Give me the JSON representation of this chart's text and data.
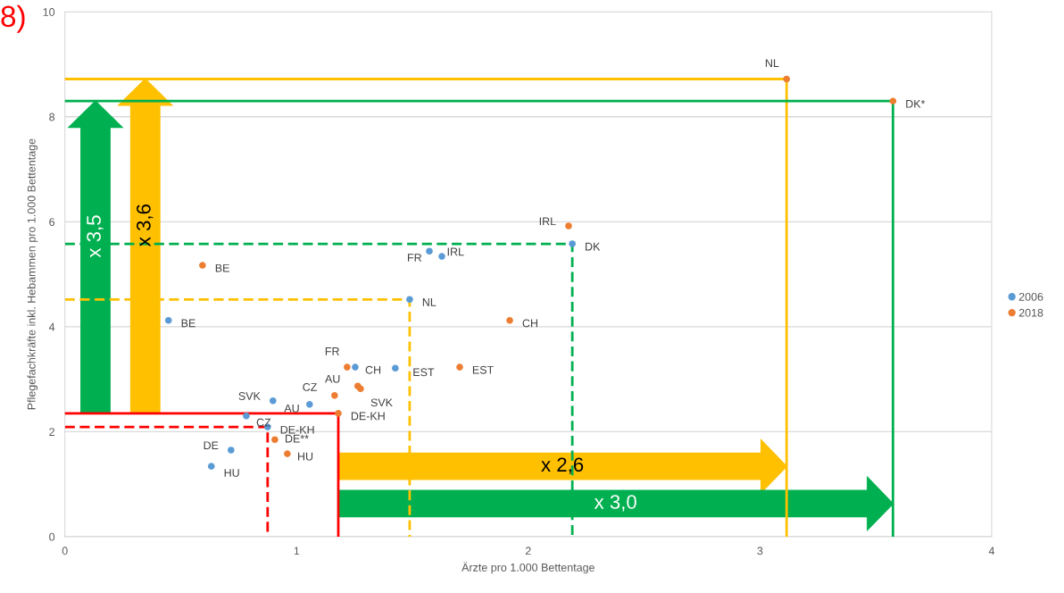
{
  "chart_data": {
    "type": "scatter",
    "xlabel": "Ärzte pro 1.000 Bettentage",
    "ylabel": "Pflegefachkräfte inkl. Hebammen pro 1.000 Bettentage",
    "annotations": [
      "8)",
      "x 3,5",
      "x 3,6",
      "x 2,6",
      "x 3,0"
    ],
    "xlim": [
      0,
      4
    ],
    "xticks": [
      0,
      1,
      2,
      3,
      4
    ],
    "ylim": [
      0,
      10
    ],
    "yticks": [
      0,
      2,
      4,
      6,
      8,
      10
    ],
    "grid": "y",
    "legend": "right",
    "marker": "circle",
    "series": [
      {
        "name": "2006",
        "color": "#5b9bd5",
        "x": [
          0.447,
          1.573,
          1.627,
          2.19,
          1.488,
          1.253,
          1.426,
          1.056,
          0.898,
          0.783,
          0.875,
          0.717,
          0.632
        ],
        "values": [
          4.12,
          5.44,
          5.34,
          5.58,
          4.52,
          3.23,
          3.21,
          2.52,
          2.59,
          2.3,
          2.09,
          1.65,
          1.34
        ],
        "value_labels": [
          "BE",
          "FR",
          "IRL",
          "DK",
          "NL",
          "CH",
          "EST",
          "AU",
          "SVK",
          "CZ",
          "DE-KH",
          "DE",
          "HU"
        ]
      },
      {
        "name": "2018",
        "color": "#ed7d31",
        "x": [
          3.115,
          3.574,
          2.174,
          1.92,
          0.594,
          1.704,
          1.218,
          1.264,
          1.276,
          1.164,
          1.18,
          0.906,
          0.96
        ],
        "values": [
          8.72,
          8.3,
          5.92,
          4.12,
          5.17,
          3.23,
          3.23,
          2.87,
          2.82,
          2.69,
          2.35,
          1.85,
          1.58
        ],
        "value_labels": [
          "NL",
          "DK*",
          "IRL",
          "CH",
          "BE",
          "EST",
          "FR",
          "AU",
          "SVK",
          "CZ",
          "DE-KH",
          "DE**",
          "HU"
        ]
      },
      {
        "type": "line",
        "marker": "none",
        "color": "#ff0000",
        "line_style": "dashed",
        "x": [
          0,
          0.875,
          0.875
        ],
        "values": [
          2.09,
          2.09,
          0
        ]
      },
      {
        "type": "line",
        "marker": "none",
        "color": "#ff0000",
        "line_style": "solid",
        "x": [
          0,
          1.18,
          1.18
        ],
        "values": [
          2.35,
          2.35,
          0
        ]
      },
      {
        "type": "line",
        "marker": "none",
        "color": "#ffc000",
        "line_style": "dashed",
        "x": [
          0,
          1.488,
          1.488
        ],
        "values": [
          4.52,
          4.52,
          0
        ]
      },
      {
        "type": "line",
        "marker": "none",
        "color": "#00b050",
        "line_style": "dashed",
        "x": [
          0,
          2.19,
          2.19
        ],
        "values": [
          5.58,
          5.58,
          0
        ]
      },
      {
        "type": "line",
        "marker": "none",
        "color": "#ffc000",
        "line_style": "solid",
        "x": [
          0,
          3.115,
          3.115
        ],
        "values": [
          8.72,
          8.72,
          0
        ]
      },
      {
        "type": "line",
        "marker": "none",
        "color": "#00b050",
        "line_style": "solid",
        "x": [
          0,
          3.574,
          3.574
        ],
        "values": [
          8.3,
          8.3,
          0
        ]
      }
    ]
  }
}
